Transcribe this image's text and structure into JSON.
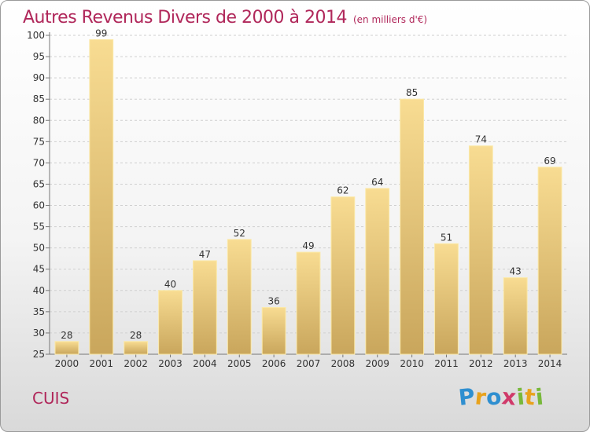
{
  "chart_data": {
    "type": "bar",
    "title": "Autres Revenus Divers de 2000 à 2014",
    "subtitle": "(en milliers d'€)",
    "xlabel": "",
    "ylabel": "",
    "categories": [
      "2000",
      "2001",
      "2002",
      "2003",
      "2004",
      "2005",
      "2006",
      "2007",
      "2008",
      "2009",
      "2010",
      "2011",
      "2012",
      "2013",
      "2014"
    ],
    "values": [
      28,
      99,
      28,
      40,
      47,
      52,
      36,
      49,
      62,
      64,
      85,
      51,
      74,
      43,
      69
    ],
    "ylim": [
      25,
      100
    ],
    "yticks": [
      25,
      30,
      35,
      40,
      45,
      50,
      55,
      60,
      65,
      70,
      75,
      80,
      85,
      90,
      95,
      100
    ],
    "grid": true,
    "bar_color": "#e8c97a"
  },
  "footer": {
    "commune": "CUIS",
    "logo_letters": [
      {
        "char": "P",
        "color": "#2f8fd0"
      },
      {
        "char": "r",
        "color": "#e8a21c"
      },
      {
        "char": "o",
        "color": "#2f8fd0"
      },
      {
        "char": "x",
        "color": "#d03a6a"
      },
      {
        "char": "i",
        "color": "#78b83a"
      },
      {
        "char": "t",
        "color": "#e8a21c"
      },
      {
        "char": "i",
        "color": "#78b83a"
      }
    ]
  }
}
